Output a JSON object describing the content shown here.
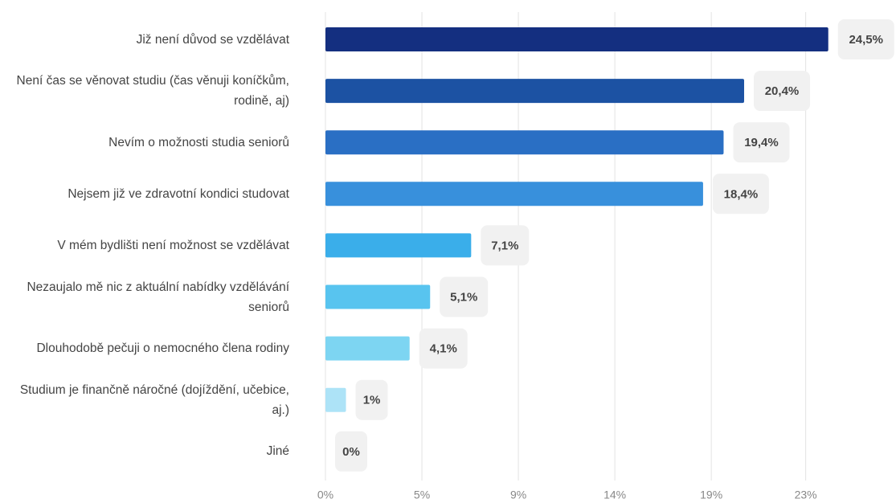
{
  "chart_data": {
    "type": "bar",
    "orientation": "horizontal",
    "categories": [
      "Již není důvod se vzdělávat",
      "Není čas se věnovat studiu (čas věnuji koníčkům, rodině, aj)",
      "Nevím o možnosti studia seniorů",
      "Nejsem již ve zdravotní kondici studovat",
      "V mém bydlišti není možnost se vzdělávat",
      "Nezaujalo mě nic z aktuální nabídky vzdělávání seniorů",
      "Dlouhodobě pečuji o nemocného člena rodiny",
      "Studium je finančně náročné (dojíždění, učebice, aj.)",
      "Jiné"
    ],
    "values": [
      24.5,
      20.4,
      19.4,
      18.4,
      7.1,
      5.1,
      4.1,
      1,
      0
    ],
    "value_labels": [
      "24,5%",
      "20,4%",
      "19,4%",
      "18,4%",
      "7,1%",
      "5,1%",
      "4,1%",
      "1%",
      "0%"
    ],
    "colors": [
      "#142f80",
      "#1c52a3",
      "#2a6fc4",
      "#3890dc",
      "#3aaeea",
      "#58c4ef",
      "#7dd5f2",
      "#ade3f7",
      "#d6f1fb"
    ],
    "xlim": [
      0,
      27.8
    ],
    "xticks": [
      {
        "value": 0,
        "label": "0%"
      },
      {
        "value": 4.7,
        "label": "5%"
      },
      {
        "value": 9.4,
        "label": "9%"
      },
      {
        "value": 14.1,
        "label": "14%"
      },
      {
        "value": 18.8,
        "label": "19%"
      },
      {
        "value": 23.4,
        "label": "23%"
      }
    ],
    "grid": true
  }
}
